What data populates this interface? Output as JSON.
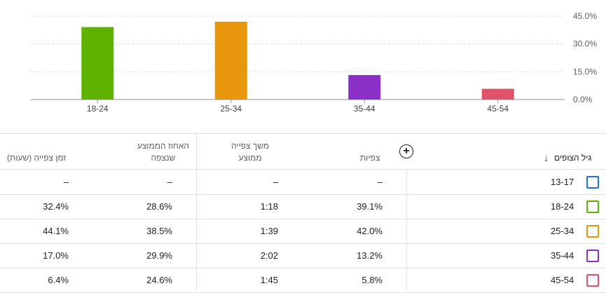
{
  "chart_data": {
    "type": "bar",
    "categories": [
      "18-24",
      "25-34",
      "35-44",
      "45-54"
    ],
    "values": [
      39.1,
      42.0,
      13.2,
      5.8
    ],
    "colors": [
      "#5db300",
      "#e8960c",
      "#8b2fc9",
      "#e0516a"
    ],
    "yticks": [
      "0.0%",
      "15.0%",
      "30.0%",
      "45.0%"
    ],
    "ytick_values": [
      0,
      15,
      30,
      45
    ],
    "ylim": [
      0,
      45
    ],
    "title": "",
    "xlabel": "",
    "ylabel": "",
    "grid": true
  },
  "table": {
    "headers": {
      "age": "גיל הצופים",
      "views": "צפיות",
      "avg_duration_line1": "משך צפייה",
      "avg_duration_line2": "ממוצע",
      "avg_percent_line1": "האחוז הממוצע",
      "avg_percent_line2": "שנצפה",
      "watch_time": "זמן צפייה (שעות)"
    },
    "sort_icon": "arrow-down-icon",
    "add_icon": "plus-circle-icon",
    "rows": [
      {
        "age": "13-17",
        "color": "#1a73e8",
        "views": "–",
        "duration": "–",
        "percent": "–",
        "watch": "–"
      },
      {
        "age": "18-24",
        "color": "#5db300",
        "views": "39.1%",
        "duration": "1:18",
        "percent": "28.6%",
        "watch": "32.4%"
      },
      {
        "age": "25-34",
        "color": "#e8960c",
        "views": "42.0%",
        "duration": "1:39",
        "percent": "38.5%",
        "watch": "44.1%"
      },
      {
        "age": "35-44",
        "color": "#8b2fc9",
        "views": "13.2%",
        "duration": "2:02",
        "percent": "29.9%",
        "watch": "17.0%"
      },
      {
        "age": "45-54",
        "color": "#e0516a",
        "views": "5.8%",
        "duration": "1:45",
        "percent": "24.6%",
        "watch": "6.4%"
      }
    ]
  }
}
